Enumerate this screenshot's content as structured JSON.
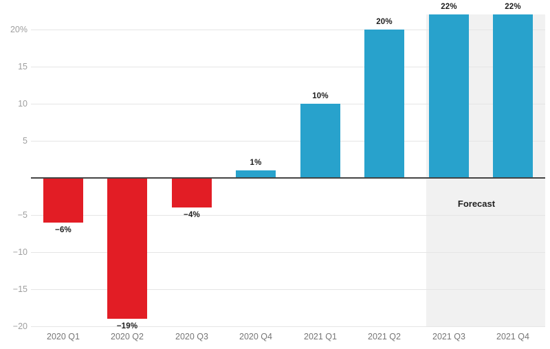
{
  "chart_data": {
    "type": "bar",
    "categories": [
      "2020 Q1",
      "2020 Q2",
      "2020 Q3",
      "2020 Q4",
      "2021 Q1",
      "2021 Q2",
      "2021 Q3",
      "2021 Q4"
    ],
    "values": [
      -6,
      -19,
      -4,
      1,
      10,
      20,
      22,
      22
    ],
    "bar_labels": [
      "−6%",
      "−19%",
      "−4%",
      "1%",
      "10%",
      "20%",
      "22%",
      "22%"
    ],
    "y_ticks": [
      20,
      15,
      10,
      5,
      -5,
      -10,
      -15,
      -20
    ],
    "y_tick_labels": [
      "20%",
      "15",
      "10",
      "5",
      "−5",
      "−10",
      "−15",
      "−20"
    ],
    "ylim": [
      -20,
      22
    ],
    "grid": "horizontal",
    "legend": "none",
    "forecast": {
      "label": "Forecast",
      "start_category_index": 6
    },
    "colors": {
      "positive_bar": "#28a2cc",
      "negative_bar": "#e21d25",
      "forecast_background": "#f1f1f1",
      "gridline": "#e5e5e5",
      "zero_line": "#424242",
      "y_tick_text": "#9e9e9e",
      "x_tick_text": "#757575",
      "bar_label_text": "#1d1d1d",
      "forecast_label_text": "#212121",
      "background": "#ffffff"
    }
  }
}
